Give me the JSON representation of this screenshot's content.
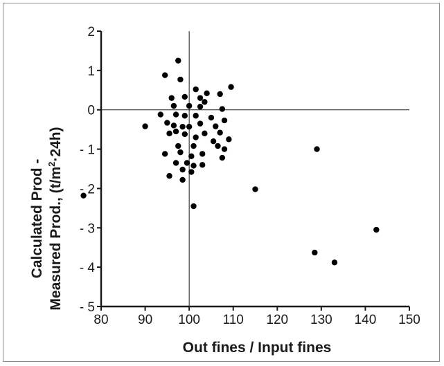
{
  "chart_data": {
    "type": "scatter",
    "xlabel": "Out fines / Input fines",
    "ylabel_line1": "Calculated Prod -",
    "ylabel_line2_prefix": "Measured Prod., (t/m",
    "ylabel_line2_sup": "2",
    "ylabel_line2_suffix": "·24h)",
    "xlim": [
      80,
      150
    ],
    "ylim": [
      -5,
      2
    ],
    "xticks": [
      80,
      90,
      100,
      110,
      120,
      130,
      140,
      150
    ],
    "yticks": [
      2,
      1,
      0,
      -1,
      -2,
      -3,
      -4,
      -5
    ],
    "xtick_labels": [
      "80",
      "90",
      "100",
      "110",
      "120",
      "130",
      "140",
      "150"
    ],
    "ytick_labels": [
      "2",
      "1",
      "0",
      "- 1",
      "- 2",
      "- 3",
      "- 4",
      "- 5"
    ],
    "reference_lines": {
      "x": 100,
      "y": 0
    },
    "marker_color": "#000000",
    "points": [
      [
        97.5,
        1.25
      ],
      [
        94.5,
        0.88
      ],
      [
        98,
        0.77
      ],
      [
        96,
        0.3
      ],
      [
        99,
        0.33
      ],
      [
        101.5,
        0.52
      ],
      [
        102.5,
        0.3
      ],
      [
        104,
        0.42
      ],
      [
        103.5,
        0.2
      ],
      [
        107,
        0.4
      ],
      [
        109.5,
        0.58
      ],
      [
        107.5,
        0.02
      ],
      [
        96.5,
        0.1
      ],
      [
        100,
        0.1
      ],
      [
        102.5,
        0.08
      ],
      [
        93.5,
        -0.12
      ],
      [
        97,
        -0.12
      ],
      [
        99,
        -0.15
      ],
      [
        101.5,
        -0.15
      ],
      [
        105,
        -0.2
      ],
      [
        108,
        -0.27
      ],
      [
        90,
        -0.42
      ],
      [
        95,
        -0.33
      ],
      [
        96.5,
        -0.4
      ],
      [
        98.5,
        -0.43
      ],
      [
        100,
        -0.43
      ],
      [
        102.5,
        -0.35
      ],
      [
        106,
        -0.42
      ],
      [
        95.5,
        -0.6
      ],
      [
        97,
        -0.55
      ],
      [
        99,
        -0.62
      ],
      [
        101.5,
        -0.7
      ],
      [
        103.5,
        -0.6
      ],
      [
        105.5,
        -0.8
      ],
      [
        107,
        -0.58
      ],
      [
        109,
        -0.75
      ],
      [
        97.5,
        -0.92
      ],
      [
        101,
        -0.92
      ],
      [
        106.5,
        -0.92
      ],
      [
        108,
        -1.0
      ],
      [
        94.5,
        -1.12
      ],
      [
        98,
        -1.08
      ],
      [
        100.5,
        -1.18
      ],
      [
        103,
        -1.12
      ],
      [
        107.5,
        -1.22
      ],
      [
        97,
        -1.35
      ],
      [
        99.5,
        -1.35
      ],
      [
        101,
        -1.42
      ],
      [
        103,
        -1.4
      ],
      [
        98.5,
        -1.52
      ],
      [
        100.5,
        -1.58
      ],
      [
        95.5,
        -1.68
      ],
      [
        98.5,
        -1.78
      ],
      [
        101,
        -2.45
      ],
      [
        76,
        -2.18
      ],
      [
        115,
        -2.02
      ],
      [
        129,
        -1.0
      ],
      [
        128.5,
        -3.63
      ],
      [
        133,
        -3.88
      ],
      [
        142.5,
        -3.05
      ]
    ]
  }
}
